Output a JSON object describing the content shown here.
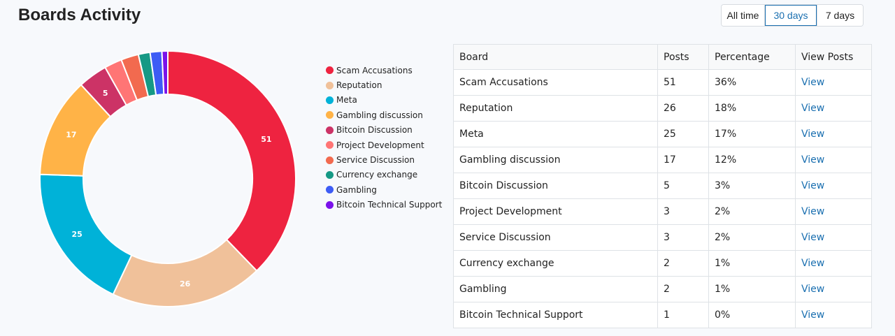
{
  "page": {
    "title": "Boards Activity"
  },
  "ranges": [
    {
      "label": "All time",
      "active": false
    },
    {
      "label": "30 days",
      "active": true
    },
    {
      "label": "7 days",
      "active": false
    }
  ],
  "table": {
    "headers": [
      "Board",
      "Posts",
      "Percentage",
      "View Posts"
    ],
    "rows": [
      {
        "board": "Scam Accusations",
        "posts": "51",
        "percentage": "36%",
        "view": "View"
      },
      {
        "board": "Reputation",
        "posts": "26",
        "percentage": "18%",
        "view": "View"
      },
      {
        "board": "Meta",
        "posts": "25",
        "percentage": "17%",
        "view": "View"
      },
      {
        "board": "Gambling discussion",
        "posts": "17",
        "percentage": "12%",
        "view": "View"
      },
      {
        "board": "Bitcoin Discussion",
        "posts": "5",
        "percentage": "3%",
        "view": "View"
      },
      {
        "board": "Project Development",
        "posts": "3",
        "percentage": "2%",
        "view": "View"
      },
      {
        "board": "Service Discussion",
        "posts": "3",
        "percentage": "2%",
        "view": "View"
      },
      {
        "board": "Currency exchange",
        "posts": "2",
        "percentage": "1%",
        "view": "View"
      },
      {
        "board": "Gambling",
        "posts": "2",
        "percentage": "1%",
        "view": "View"
      },
      {
        "board": "Bitcoin Technical Support",
        "posts": "1",
        "percentage": "0%",
        "view": "View"
      }
    ]
  },
  "chart_data": {
    "type": "pie",
    "variant": "doughnut",
    "categories": [
      "Scam Accusations",
      "Reputation",
      "Meta",
      "Gambling discussion",
      "Bitcoin Discussion",
      "Project Development",
      "Service Discussion",
      "Currency exchange",
      "Gambling",
      "Bitcoin Technical Support"
    ],
    "values": [
      51,
      26,
      25,
      17,
      5,
      3,
      3,
      2,
      2,
      1
    ],
    "colors": [
      "#ee2340",
      "#f0c19a",
      "#00b2d8",
      "#ffb347",
      "#cc3366",
      "#ff7575",
      "#f26a4f",
      "#169985",
      "#3d5cf5",
      "#7b12ea"
    ],
    "data_labels_shown_for": [
      "Scam Accusations",
      "Reputation",
      "Meta",
      "Gambling discussion",
      "Bitcoin Discussion"
    ],
    "legend": "right"
  }
}
